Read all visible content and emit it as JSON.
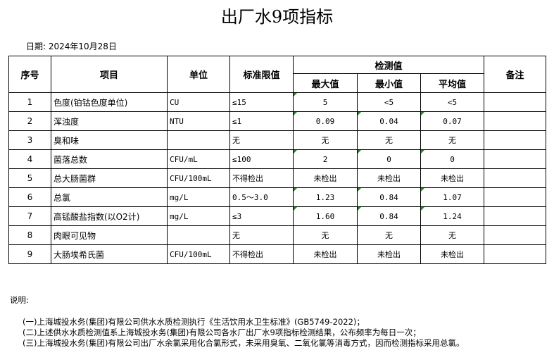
{
  "title": "出厂水9项指标",
  "date": "日期: 2024年10月28日",
  "headers": {
    "seq": "序号",
    "item": "项目",
    "unit": "单位",
    "limit": "标准限值",
    "measured": "检测值",
    "max": "最大值",
    "min": "最小值",
    "avg": "平均值",
    "remark": "备注"
  },
  "flag_color": "#1a8c1a",
  "rows": [
    {
      "seq": "1",
      "item": "色度(铂钴色度单位)",
      "unit": "CU",
      "limit": "≤15",
      "max": "5",
      "min": "<5",
      "avg": "<5",
      "flags": [
        true,
        false,
        false
      ]
    },
    {
      "seq": "2",
      "item": "浑浊度",
      "unit": "NTU",
      "limit": "≤1",
      "max": "0.09",
      "min": "0.04",
      "avg": "0.07",
      "flags": [
        true,
        true,
        true
      ]
    },
    {
      "seq": "3",
      "item": "臭和味",
      "unit": "",
      "limit": "无",
      "max": "无",
      "min": "无",
      "avg": "无",
      "flags": [
        false,
        false,
        false
      ]
    },
    {
      "seq": "4",
      "item": "菌落总数",
      "unit": "CFU/mL",
      "limit": "≤100",
      "max": "2",
      "min": "0",
      "avg": "0",
      "flags": [
        true,
        true,
        true
      ]
    },
    {
      "seq": "5",
      "item": "总大肠菌群",
      "unit": "CFU/100mL",
      "limit": "不得检出",
      "max": "未检出",
      "min": "未检出",
      "avg": "未检出",
      "flags": [
        false,
        false,
        false
      ]
    },
    {
      "seq": "6",
      "item": "总氯",
      "unit": "mg/L",
      "limit": "0.5～3.0",
      "max": "1.23",
      "min": "0.84",
      "avg": "1.07",
      "flags": [
        true,
        true,
        true
      ]
    },
    {
      "seq": "7",
      "item": "高锰酸盐指数(以O2计)",
      "unit": "mg/L",
      "limit": "≤3",
      "max": "1.60",
      "min": "0.84",
      "avg": "1.24",
      "flags": [
        true,
        true,
        true
      ]
    },
    {
      "seq": "8",
      "item": "肉眼可见物",
      "unit": "",
      "limit": "无",
      "max": "无",
      "min": "无",
      "avg": "无",
      "flags": [
        false,
        false,
        false
      ]
    },
    {
      "seq": "9",
      "item": "大肠埃希氏菌",
      "unit": "CFU/100mL",
      "limit": "不得检出",
      "max": "未检出",
      "min": "未检出",
      "avg": "未检出",
      "flags": [
        false,
        false,
        false
      ]
    }
  ],
  "notes": {
    "label": "说明:",
    "items": [
      "(一)上海城投水务(集团)有限公司供水水质检测执行《生活饮用水卫生标准》(GB5749-2022)；",
      "(二)上述供水水质检测值系上海城投水务(集团)有限公司各水厂出厂水9项指标检测结果，公布频率为每日一次；",
      "(三)上海城投水务(集团)有限公司出厂水余氯采用化合氯形式，未采用臭氧、二氧化氯等消毒方式，因而检测指标采用总氯。"
    ]
  }
}
